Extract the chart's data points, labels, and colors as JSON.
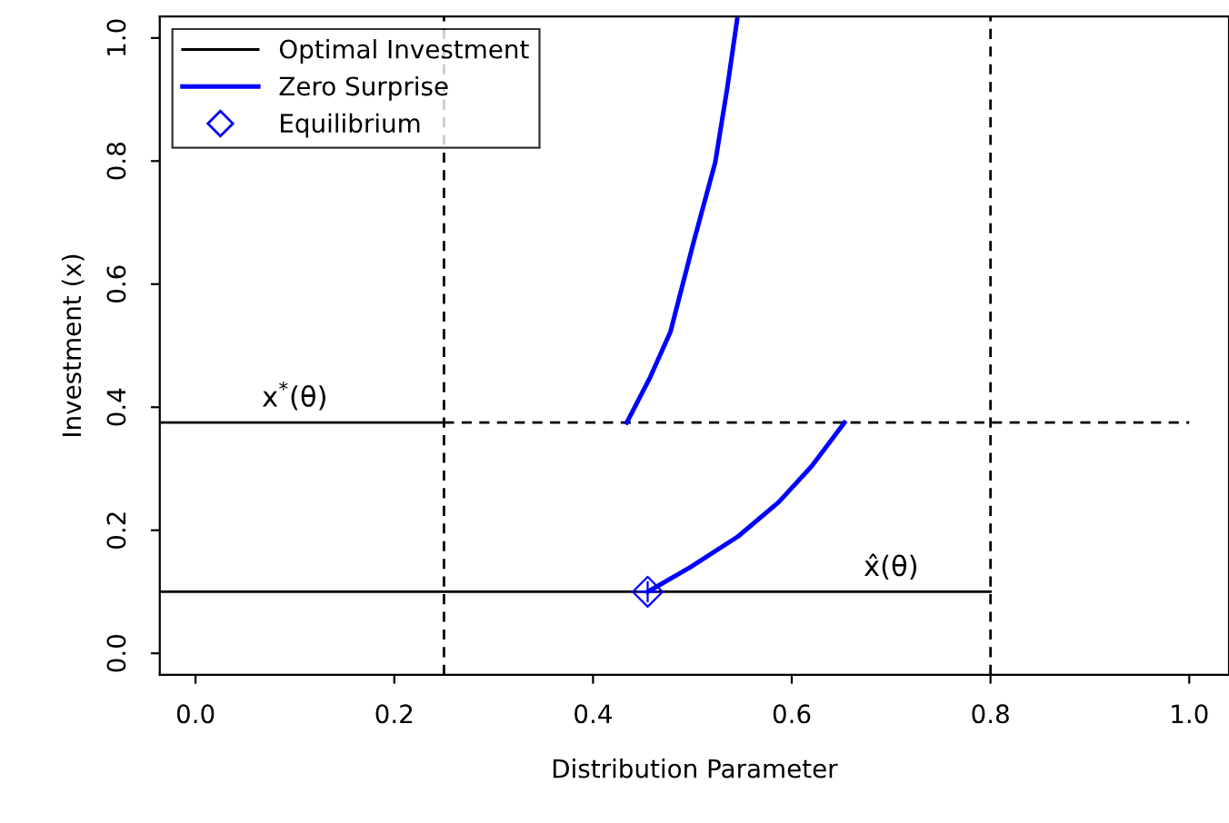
{
  "chart_data": {
    "type": "line",
    "xlabel": "Distribution Parameter",
    "ylabel": "Investment (x)",
    "xlim": [
      -0.036,
      1.04
    ],
    "ylim": [
      -0.035,
      1.035
    ],
    "xticks": [
      {
        "value": 0,
        "label": "0.0"
      },
      0.2,
      0.4,
      0.6,
      0.8,
      {
        "value": 1,
        "label": "1.0"
      }
    ],
    "yticks": [
      {
        "value": 0,
        "label": "0.0"
      },
      0.2,
      0.4,
      0.6,
      0.8,
      {
        "value": 1,
        "label": "1.0"
      }
    ],
    "grid": false,
    "legend": "top left",
    "series": [
      {
        "name": "Optimal Investment",
        "color": "#000000",
        "x": [
          -0.036,
          0.25
        ],
        "values": [
          0.375,
          0.375
        ]
      },
      {
        "color": "#000000",
        "x": [
          -0.036,
          0.8
        ],
        "values": [
          0.1,
          0.1
        ]
      },
      {
        "color": "#000000",
        "x": [
          0.25,
          1.0
        ],
        "values": [
          0.375,
          0.375
        ],
        "line_style": "dashed"
      },
      {
        "name": "Zero Surprise",
        "color": "#0000ff",
        "x": [
          0.434,
          0.457,
          0.478,
          0.501,
          0.523,
          0.535,
          0.545
        ],
        "values": [
          0.375,
          0.447,
          0.523,
          0.667,
          0.798,
          0.918,
          1.03
        ]
      },
      {
        "color": "#0000ff",
        "x": [
          0.455,
          0.498,
          0.546,
          0.587,
          0.62,
          0.653
        ],
        "values": [
          0.1,
          0.14,
          0.19,
          0.246,
          0.304,
          0.375
        ]
      },
      {
        "name": "Equilibrium",
        "type": "scatter",
        "marker": "diamond",
        "color": "#0000ff",
        "x": [
          0.455
        ],
        "values": [
          0.1
        ]
      }
    ],
    "ref_lines": [
      {
        "axis": "x",
        "value": 0.25,
        "color": "#000000",
        "line_style": "dashed"
      },
      {
        "axis": "x",
        "value": 0.8,
        "color": "#000000",
        "line_style": "dashed"
      }
    ],
    "annotations": [
      {
        "text": "x$^{*}$(θ)",
        "x": 0.1,
        "y": 0.375
      },
      {
        "text": "x̂(θ)",
        "x": 0.7,
        "y": 0.1
      }
    ]
  }
}
